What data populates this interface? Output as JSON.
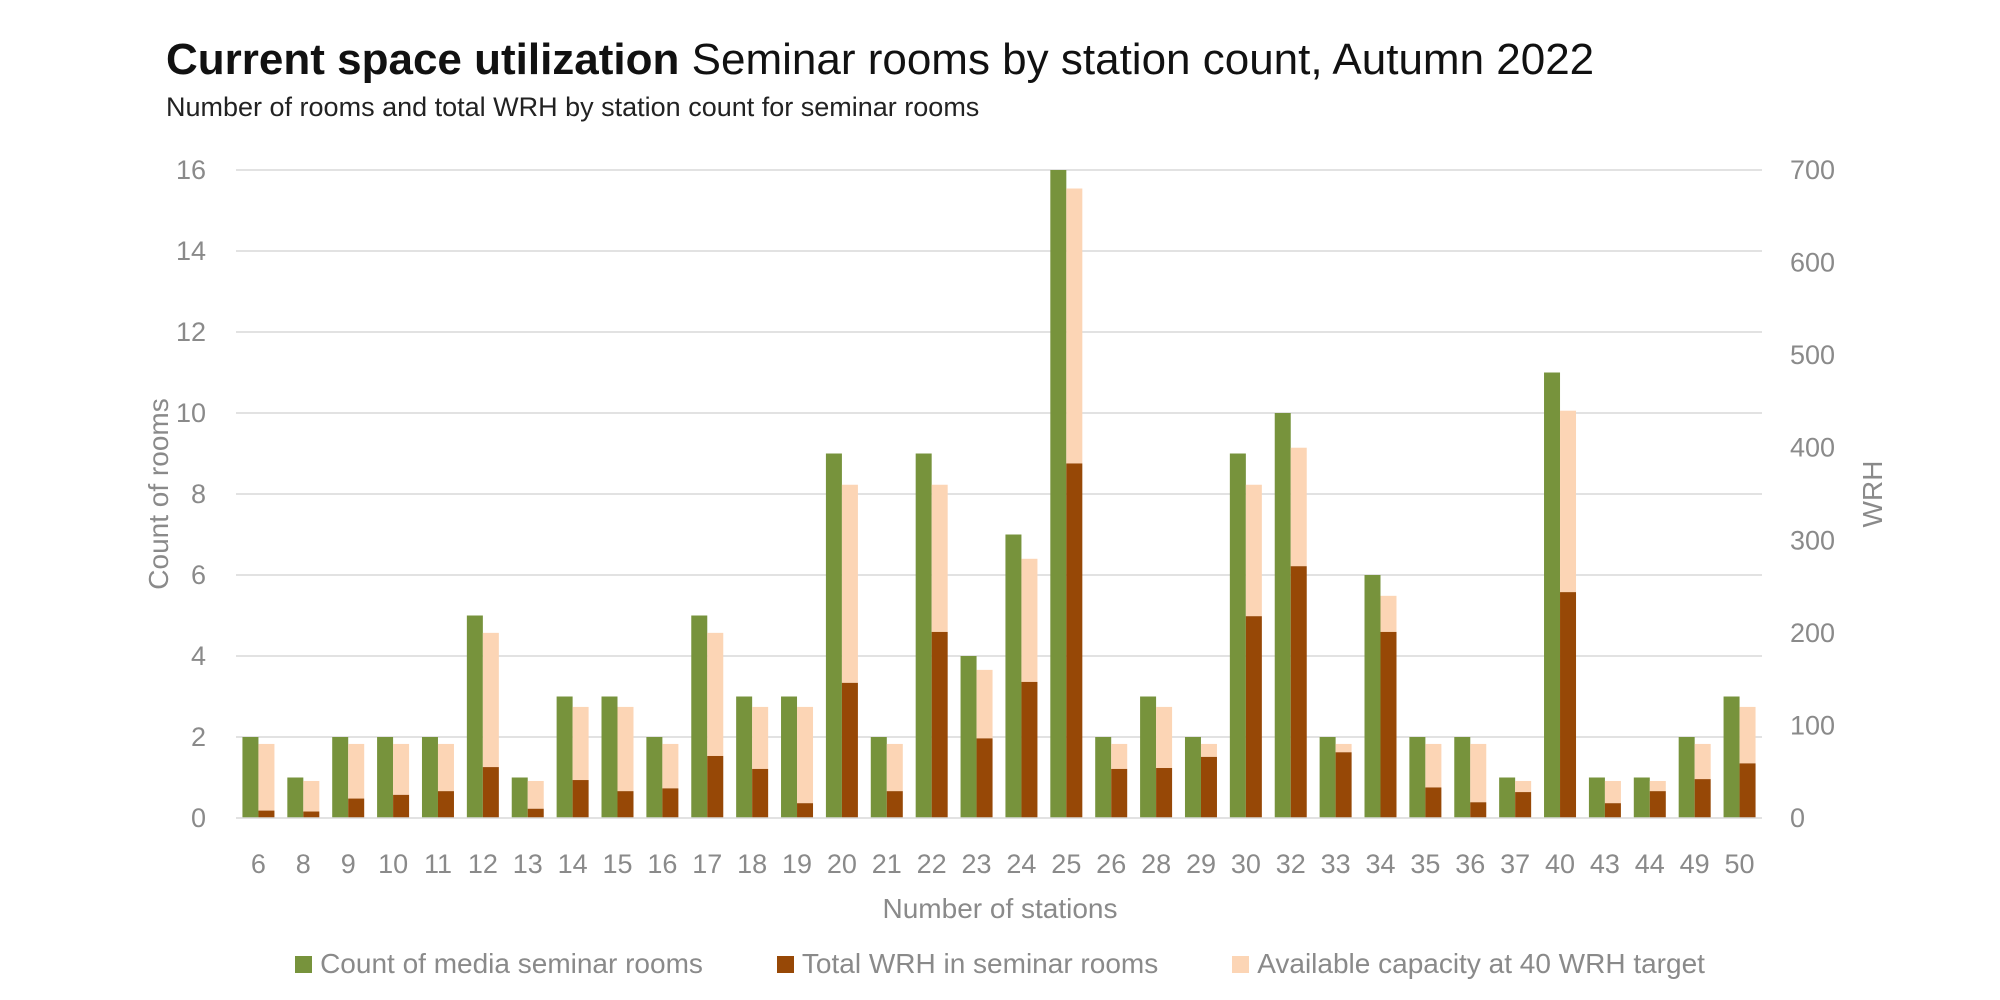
{
  "header": {
    "title_bold": "Current space utilization",
    "title_rest": " Seminar rooms by station count, Autumn 2022",
    "subtitle": "Number of rooms and total WRH by station count for seminar rooms"
  },
  "colors": {
    "count": "#77933c",
    "wrh": "#974806",
    "capacity": "#fcd5b5",
    "grid": "#d9d9d9"
  },
  "chart_data": {
    "type": "bar",
    "title": "Current space utilization Seminar rooms by station count, Autumn 2022",
    "subtitle": "Number of rooms and total WRH by station count for seminar rooms",
    "xlabel": "Number of stations",
    "ylabel": "Count of rooms",
    "y2label": "WRH",
    "ylim": [
      0,
      16
    ],
    "y2lim": [
      0,
      700
    ],
    "yticks": [
      0,
      2,
      4,
      6,
      8,
      10,
      12,
      14,
      16
    ],
    "y2ticks": [
      0,
      100,
      200,
      300,
      400,
      500,
      600,
      700
    ],
    "grid": true,
    "legend_position": "bottom",
    "categories": [
      "6",
      "8",
      "9",
      "10",
      "11",
      "12",
      "13",
      "14",
      "15",
      "16",
      "17",
      "18",
      "19",
      "20",
      "21",
      "22",
      "23",
      "24",
      "25",
      "26",
      "28",
      "29",
      "30",
      "32",
      "33",
      "34",
      "35",
      "36",
      "37",
      "40",
      "43",
      "44",
      "49",
      "50"
    ],
    "series": [
      {
        "name": "Count of media seminar rooms",
        "axis": "left",
        "values": [
          2,
          1,
          2,
          2,
          2,
          5,
          1,
          3,
          3,
          2,
          5,
          3,
          3,
          9,
          2,
          9,
          4,
          7,
          16,
          2,
          3,
          2,
          9,
          10,
          2,
          6,
          2,
          2,
          1,
          11,
          1,
          1,
          2,
          3
        ]
      },
      {
        "name": "Total WRH in seminar rooms",
        "axis": "right",
        "stacked": true,
        "values": [
          8,
          7,
          21,
          25,
          29,
          55,
          10,
          41,
          29,
          32,
          67,
          53,
          16,
          146,
          29,
          201,
          86,
          147,
          383,
          53,
          54,
          66,
          218,
          272,
          71,
          201,
          33,
          17,
          28,
          244,
          16,
          29,
          42,
          59
        ]
      },
      {
        "name": "Available capacity at 40 WRH target",
        "axis": "right",
        "stacked": true,
        "values": [
          72,
          33,
          59,
          55,
          51,
          145,
          30,
          79,
          91,
          48,
          133,
          67,
          104,
          214,
          51,
          159,
          74,
          133,
          297,
          27,
          66,
          14,
          142,
          128,
          9,
          39,
          47,
          63,
          12,
          196,
          24,
          11,
          38,
          61
        ]
      }
    ]
  }
}
